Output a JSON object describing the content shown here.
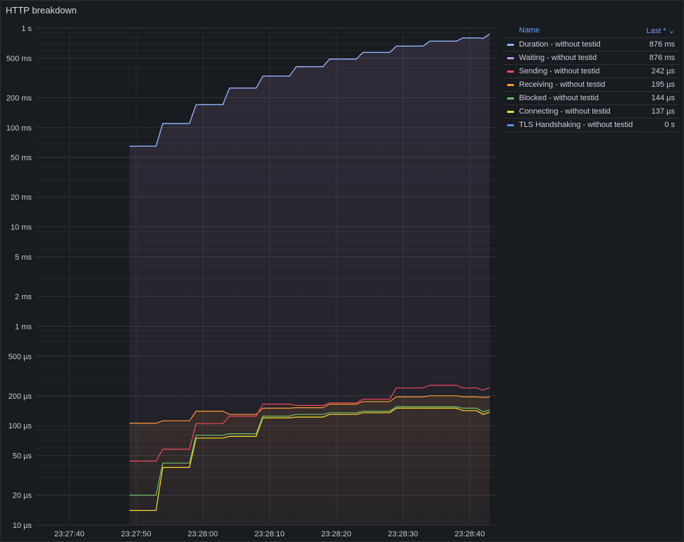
{
  "panel": {
    "title": "HTTP breakdown"
  },
  "legend": {
    "name_header": "Name",
    "last_header": "Last *",
    "sort_icon": "chevron-down-icon",
    "items": [
      {
        "name": "Duration - without testid",
        "last": "876 ms",
        "color": "#8ab8ff"
      },
      {
        "name": "Waiting - without testid",
        "last": "876 ms",
        "color": "#ca95e5"
      },
      {
        "name": "Sending - without testid",
        "last": "242 µs",
        "color": "#f2495c"
      },
      {
        "name": "Receiving - without testid",
        "last": "195 µs",
        "color": "#ff9830"
      },
      {
        "name": "Blocked - without testid",
        "last": "144 µs",
        "color": "#73bf69"
      },
      {
        "name": "Connecting - without testid",
        "last": "137 µs",
        "color": "#fade2a"
      },
      {
        "name": "TLS Handshaking - without testid",
        "last": "0 s",
        "color": "#5794f2"
      }
    ]
  },
  "chart_data": {
    "type": "line",
    "title": "HTTP breakdown",
    "y_scale": "log",
    "y_unit": "s",
    "ylim": [
      1e-05,
      1
    ],
    "xlim": [
      "23:27:35",
      "23:28:44"
    ],
    "grid": true,
    "legend_position": "right",
    "y_ticks": [
      {
        "v": 1,
        "label": "1 s"
      },
      {
        "v": 0.5,
        "label": "500 ms"
      },
      {
        "v": 0.2,
        "label": "200 ms"
      },
      {
        "v": 0.1,
        "label": "100 ms"
      },
      {
        "v": 0.05,
        "label": "50 ms"
      },
      {
        "v": 0.02,
        "label": "20 ms"
      },
      {
        "v": 0.01,
        "label": "10 ms"
      },
      {
        "v": 0.005,
        "label": "5 ms"
      },
      {
        "v": 0.002,
        "label": "2 ms"
      },
      {
        "v": 0.001,
        "label": "1 ms"
      },
      {
        "v": 0.0005,
        "label": "500 µs"
      },
      {
        "v": 0.0002,
        "label": "200 µs"
      },
      {
        "v": 0.0001,
        "label": "100 µs"
      },
      {
        "v": 5e-05,
        "label": "50 µs"
      },
      {
        "v": 2e-05,
        "label": "20 µs"
      },
      {
        "v": 1e-05,
        "label": "10 µs"
      }
    ],
    "x_ticks": [
      "23:27:40",
      "23:27:50",
      "23:28:00",
      "23:28:10",
      "23:28:20",
      "23:28:30",
      "23:28:40"
    ],
    "x": [
      "23:27:49",
      "23:27:53",
      "23:27:54",
      "23:27:58",
      "23:27:59",
      "23:28:03",
      "23:28:04",
      "23:28:08",
      "23:28:09",
      "23:28:13",
      "23:28:14",
      "23:28:18",
      "23:28:19",
      "23:28:23",
      "23:28:24",
      "23:28:28",
      "23:28:29",
      "23:28:33",
      "23:28:34",
      "23:28:38",
      "23:28:39",
      "23:28:41",
      "23:28:42",
      "23:28:43"
    ],
    "series": [
      {
        "name": "Duration - without testid",
        "color": "#8ab8ff",
        "values": [
          0.065,
          0.065,
          0.11,
          0.11,
          0.17,
          0.17,
          0.25,
          0.25,
          0.33,
          0.33,
          0.41,
          0.41,
          0.49,
          0.49,
          0.57,
          0.57,
          0.66,
          0.66,
          0.74,
          0.74,
          0.8,
          0.8,
          0.79,
          0.876
        ]
      },
      {
        "name": "Waiting - without testid",
        "color": "#ca95e5",
        "values": [
          0.065,
          0.065,
          0.11,
          0.11,
          0.17,
          0.17,
          0.25,
          0.25,
          0.33,
          0.33,
          0.41,
          0.41,
          0.49,
          0.49,
          0.57,
          0.57,
          0.66,
          0.66,
          0.74,
          0.74,
          0.8,
          0.8,
          0.79,
          0.876
        ]
      },
      {
        "name": "Sending - without testid",
        "color": "#f2495c",
        "values": [
          4.4e-05,
          4.4e-05,
          5.8e-05,
          5.8e-05,
          0.000105,
          0.000105,
          0.000125,
          0.000125,
          0.000165,
          0.000165,
          0.00016,
          0.00016,
          0.00017,
          0.00017,
          0.000185,
          0.000185,
          0.00024,
          0.00024,
          0.000255,
          0.000255,
          0.00024,
          0.00024,
          0.000228,
          0.000242
        ]
      },
      {
        "name": "Receiving - without testid",
        "color": "#ff9830",
        "values": [
          0.000106,
          0.000106,
          0.000112,
          0.000112,
          0.00014,
          0.00014,
          0.00013,
          0.00013,
          0.00015,
          0.00015,
          0.000152,
          0.000152,
          0.000165,
          0.000165,
          0.000175,
          0.000175,
          0.000195,
          0.000195,
          0.0002,
          0.0002,
          0.000195,
          0.000195,
          0.000193,
          0.000195
        ]
      },
      {
        "name": "Blocked - without testid",
        "color": "#73bf69",
        "values": [
          2e-05,
          2e-05,
          4.2e-05,
          4.2e-05,
          8e-05,
          8e-05,
          8.3e-05,
          8.3e-05,
          0.000125,
          0.000125,
          0.00013,
          0.00013,
          0.000135,
          0.000135,
          0.00014,
          0.00014,
          0.000155,
          0.000155,
          0.000155,
          0.000155,
          0.00015,
          0.00015,
          0.000138,
          0.000144
        ]
      },
      {
        "name": "Connecting - without testid",
        "color": "#fade2a",
        "values": [
          1.4e-05,
          1.4e-05,
          3.8e-05,
          3.8e-05,
          7.5e-05,
          7.5e-05,
          7.8e-05,
          7.8e-05,
          0.00012,
          0.00012,
          0.000122,
          0.000122,
          0.00013,
          0.00013,
          0.000135,
          0.000135,
          0.00015,
          0.00015,
          0.00015,
          0.00015,
          0.000142,
          0.000142,
          0.00013,
          0.000137
        ]
      },
      {
        "name": "TLS Handshaking - without testid",
        "color": "#5794f2",
        "values": [
          0,
          0,
          0,
          0,
          0,
          0,
          0,
          0,
          0,
          0,
          0,
          0,
          0,
          0,
          0,
          0,
          0,
          0,
          0,
          0,
          0,
          0,
          0,
          0
        ]
      }
    ]
  }
}
